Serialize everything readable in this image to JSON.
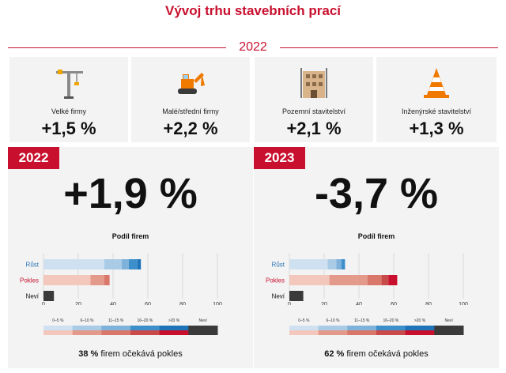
{
  "title": "Vývoj trhu stavebních prací",
  "year_top": "2022",
  "categories": [
    {
      "label": "Velké firmy",
      "value": "+1,5 %",
      "icon": "tower-crane-icon"
    },
    {
      "label": "Malé/střední firmy",
      "value": "+2,2 %",
      "icon": "excavator-icon"
    },
    {
      "label": "Pozemní stavitelství",
      "value": "+2,1 %",
      "icon": "building-icon"
    },
    {
      "label": "Inženýrské stavitelství",
      "value": "+1,3 %",
      "icon": "traffic-cone-icon"
    }
  ],
  "panels": [
    {
      "year": "2022",
      "big_value": "+1,9 %",
      "share_title": "Podíl firem",
      "summary_pct": "38 %",
      "summary_text": " firem očekává pokles"
    },
    {
      "year": "2023",
      "big_value": "-3,7 %",
      "share_title": "Podíl firem",
      "summary_pct": "62 %",
      "summary_text": " firem očekává pokles"
    }
  ],
  "chart_data": [
    {
      "type": "bar",
      "stacked": true,
      "orientation": "horizontal",
      "categories": [
        "Růst",
        "Pokles",
        "Neví"
      ],
      "xticks": [
        0,
        20,
        40,
        60,
        80,
        100
      ],
      "xlim": [
        0,
        100
      ],
      "legend": [
        "0–5 %",
        "6–10 %",
        "11–15 %",
        "16–20 %",
        ">20 %",
        "Neví"
      ],
      "series": [
        {
          "name": "0–5 %",
          "values": [
            35,
            27,
            0
          ]
        },
        {
          "name": "6–10 %",
          "values": [
            10,
            8,
            0
          ]
        },
        {
          "name": "11–15 %",
          "values": [
            4,
            3,
            0
          ]
        },
        {
          "name": "16–20 %",
          "values": [
            5,
            0,
            0
          ]
        },
        {
          "name": ">20 %",
          "values": [
            2,
            0,
            0
          ]
        },
        {
          "name": "Neví",
          "values": [
            0,
            0,
            6
          ]
        }
      ]
    },
    {
      "type": "bar",
      "stacked": true,
      "orientation": "horizontal",
      "categories": [
        "Růst",
        "Pokles",
        "Neví"
      ],
      "xticks": [
        0,
        20,
        40,
        60,
        80,
        100
      ],
      "xlim": [
        0,
        100
      ],
      "legend": [
        "0–5 %",
        "6–10 %",
        "11–15 %",
        "16–20 %",
        ">20 %",
        "Neví"
      ],
      "series": [
        {
          "name": "0–5 %",
          "values": [
            22,
            23,
            0
          ]
        },
        {
          "name": "6–10 %",
          "values": [
            5,
            22,
            0
          ]
        },
        {
          "name": "11–15 %",
          "values": [
            3,
            8,
            0
          ]
        },
        {
          "name": "16–20 %",
          "values": [
            2,
            4,
            0
          ]
        },
        {
          "name": ">20 %",
          "values": [
            0,
            5,
            0
          ]
        },
        {
          "name": "Neví",
          "values": [
            0,
            0,
            8
          ]
        }
      ]
    }
  ],
  "colors": {
    "brand": "#c8102e",
    "grow": [
      "#cfe1f0",
      "#a9cbe6",
      "#7fb2db",
      "#3d8fcb",
      "#1e74b8"
    ],
    "decline": [
      "#f4c7bd",
      "#e49a8a",
      "#d9776b",
      "#c94a4a",
      "#c8102e"
    ],
    "unknown": "#3a3a3a",
    "growLabel": "#2a73b5",
    "declineLabel": "#c8102e"
  }
}
